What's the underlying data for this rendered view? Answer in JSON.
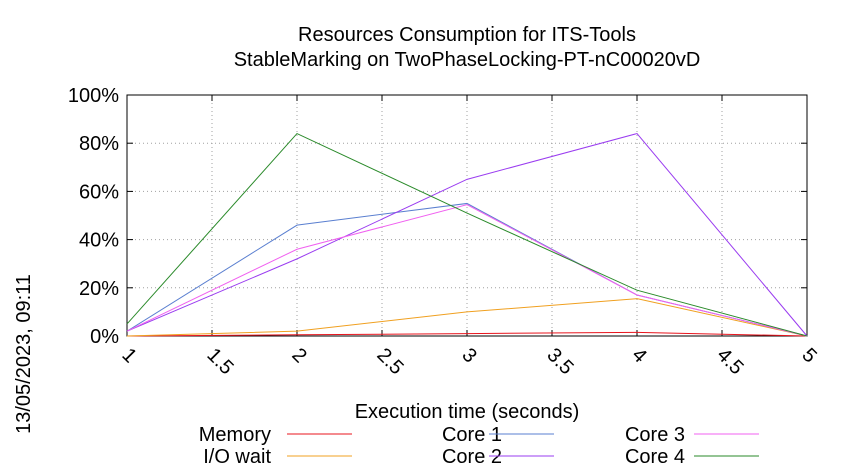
{
  "chart_data": {
    "type": "line",
    "title": "Resources Consumption for ITS-Tools",
    "subtitle": "StableMarking on TwoPhaseLocking-PT-nC00020vD",
    "xlabel": "Execution time (seconds)",
    "ylabel": "",
    "timestamp": "13/05/2023, 09:11",
    "xlim": [
      1,
      5
    ],
    "ylim": [
      0,
      100
    ],
    "x_ticks": [
      "1",
      "1.5",
      "2",
      "2.5",
      "3",
      "3.5",
      "4",
      "4.5",
      "5"
    ],
    "x_tick_values": [
      1,
      1.5,
      2,
      2.5,
      3,
      3.5,
      4,
      4.5,
      5
    ],
    "y_ticks": [
      "0%",
      "20%",
      "40%",
      "60%",
      "80%",
      "100%"
    ],
    "y_tick_values": [
      0,
      20,
      40,
      60,
      80,
      100
    ],
    "grid": true,
    "legend_position": "bottom",
    "x": [
      1,
      2,
      3,
      4,
      5
    ],
    "series": [
      {
        "name": "Memory",
        "color": "#e8151e",
        "values": [
          0,
          0.5,
          1,
          1.5,
          0
        ]
      },
      {
        "name": "I/O wait",
        "color": "#f0a020",
        "values": [
          0,
          2,
          10,
          15.5,
          0
        ]
      },
      {
        "name": "Core 1",
        "color": "#5a7fd0",
        "values": [
          2,
          46,
          55,
          17,
          0
        ]
      },
      {
        "name": "Core 2",
        "color": "#9a3cf0",
        "values": [
          2,
          32,
          65,
          84,
          0
        ]
      },
      {
        "name": "Core 3",
        "color": "#f060f0",
        "values": [
          2,
          36,
          54.5,
          17,
          0
        ]
      },
      {
        "name": "Core 4",
        "color": "#2a8a2a",
        "values": [
          5,
          84,
          51,
          19,
          0
        ]
      }
    ]
  }
}
